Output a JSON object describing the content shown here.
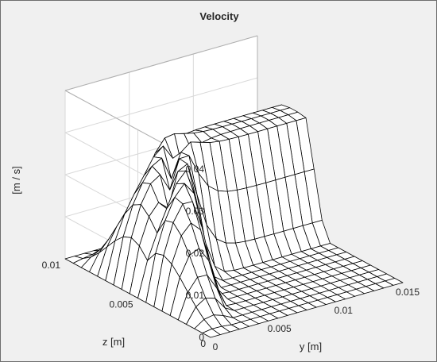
{
  "chart_data": {
    "type": "surface",
    "title": "Velocity",
    "xlabel": "y [m]",
    "ylabel": "z [m]",
    "zlabel": "[m / s]",
    "xlim": [
      0,
      0.015
    ],
    "ylim": [
      0,
      0.01
    ],
    "zlim": [
      0,
      0.04
    ],
    "x_ticks": [
      "0",
      "0.005",
      "0.01",
      "0.015"
    ],
    "y_ticks": [
      "0",
      "0.005",
      "0.01"
    ],
    "z_ticks": [
      "0",
      "0.01",
      "0.02",
      "0.03",
      "0.04"
    ],
    "grid": true,
    "colors": {
      "background": "#f0f0f0",
      "axes": "#ffffff",
      "surface_edge": "#000000",
      "surface_face": "#ffffff",
      "grid": "#d9d9d9"
    },
    "surface": {
      "y_values": [
        0.0,
        0.00075,
        0.0015,
        0.00225,
        0.003,
        0.00375,
        0.0045,
        0.00525,
        0.006,
        0.00675,
        0.0075,
        0.00825,
        0.009,
        0.00975,
        0.0105,
        0.01125,
        0.012,
        0.01275,
        0.0135,
        0.01425,
        0.015
      ],
      "z_values": [
        0.0,
        0.000556,
        0.001111,
        0.001667,
        0.002222,
        0.002778,
        0.003333,
        0.003889,
        0.004444,
        0.005,
        0.005556,
        0.006111,
        0.006667,
        0.007222,
        0.007778,
        0.008333,
        0.008889,
        0.009444,
        0.01
      ],
      "peak_velocity": 0.038,
      "description_points": [
        {
          "y": 0.0,
          "z": 0.01,
          "v": 0.038
        },
        {
          "y": 0.015,
          "z": 0.01,
          "v": 0.037
        },
        {
          "y": 0.0075,
          "z": 0.01,
          "v": 0.025
        },
        {
          "y": 0.0075,
          "z": 0.005,
          "v": 0.0
        }
      ]
    }
  }
}
